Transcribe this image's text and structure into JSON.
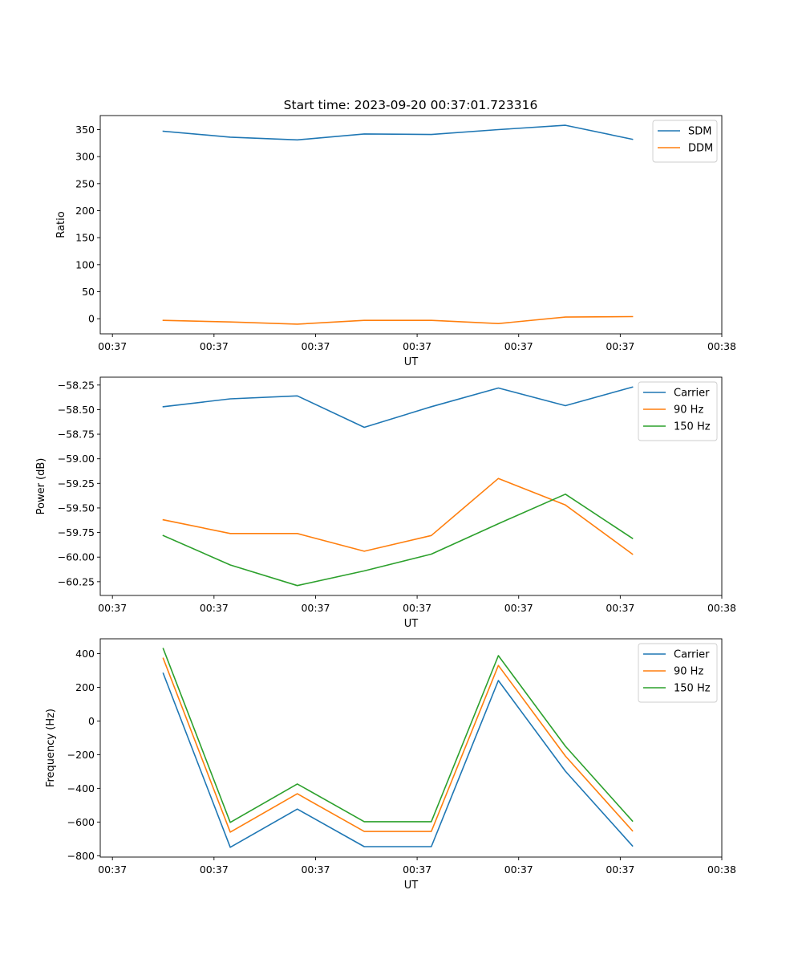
{
  "title": "Start time: 2023-09-20 00:37:01.723316",
  "chart_data": [
    {
      "type": "line",
      "ylabel": "Ratio",
      "xlabel": "UT",
      "x_tick_labels": [
        "00:37",
        "00:37",
        "00:37",
        "00:37",
        "00:37",
        "00:37",
        "00:38"
      ],
      "x_range": [
        -0.12,
        6.0
      ],
      "y_range": [
        -28,
        376
      ],
      "y_ticks": [
        0,
        50,
        100,
        150,
        200,
        250,
        300,
        350
      ],
      "y_tick_labels": [
        "0",
        "50",
        "100",
        "150",
        "200",
        "250",
        "300",
        "350"
      ],
      "legend_position": "top-right",
      "x": [
        0.5,
        1.16,
        1.82,
        2.48,
        3.14,
        3.8,
        4.46,
        5.12
      ],
      "series": [
        {
          "name": "SDM",
          "color": "#1f77b4",
          "values": [
            347,
            336,
            331,
            342,
            341,
            350,
            358,
            332
          ]
        },
        {
          "name": "DDM",
          "color": "#ff7f0e",
          "values": [
            -3,
            -6,
            -10,
            -3,
            -3,
            -9,
            3,
            4
          ]
        }
      ]
    },
    {
      "type": "line",
      "ylabel": "Power (dB)",
      "xlabel": "UT",
      "x_tick_labels": [
        "00:37",
        "00:37",
        "00:37",
        "00:37",
        "00:37",
        "00:37",
        "00:38"
      ],
      "x_range": [
        -0.12,
        6.0
      ],
      "y_range": [
        -60.39,
        -58.17
      ],
      "y_ticks": [
        -60.25,
        -60.0,
        -59.75,
        -59.5,
        -59.25,
        -59.0,
        -58.75,
        -58.5,
        -58.25
      ],
      "y_tick_labels": [
        "−60.25",
        "−60.00",
        "−59.75",
        "−59.50",
        "−59.25",
        "−59.00",
        "−58.75",
        "−58.50",
        "−58.25"
      ],
      "legend_position": "top-right",
      "x": [
        0.5,
        1.16,
        1.82,
        2.48,
        3.14,
        3.8,
        4.46,
        5.12
      ],
      "series": [
        {
          "name": "Carrier",
          "color": "#1f77b4",
          "values": [
            -58.47,
            -58.39,
            -58.36,
            -58.68,
            -58.47,
            -58.28,
            -58.46,
            -58.27
          ]
        },
        {
          "name": "90 Hz",
          "color": "#ff7f0e",
          "values": [
            -59.62,
            -59.76,
            -59.76,
            -59.94,
            -59.78,
            -59.2,
            -59.47,
            -59.97
          ]
        },
        {
          "name": "150 Hz",
          "color": "#2ca02c",
          "values": [
            -59.78,
            -60.08,
            -60.29,
            -60.14,
            -59.97,
            -59.66,
            -59.36,
            -59.81
          ]
        }
      ]
    },
    {
      "type": "line",
      "ylabel": "Frequency (Hz)",
      "xlabel": "UT",
      "x_tick_labels": [
        "00:37",
        "00:37",
        "00:37",
        "00:37",
        "00:37",
        "00:37",
        "00:38"
      ],
      "x_range": [
        -0.12,
        6.0
      ],
      "y_range": [
        -808,
        488
      ],
      "y_ticks": [
        -800,
        -600,
        -400,
        -200,
        0,
        200,
        400
      ],
      "y_tick_labels": [
        "−800",
        "−600",
        "−400",
        "−200",
        "0",
        "200",
        "400"
      ],
      "legend_position": "top-right",
      "x": [
        0.5,
        1.16,
        1.82,
        2.48,
        3.14,
        3.8,
        4.46,
        5.12
      ],
      "series": [
        {
          "name": "Carrier",
          "color": "#1f77b4",
          "values": [
            283,
            -750,
            -523,
            -746,
            -746,
            240,
            -298,
            -742
          ]
        },
        {
          "name": "90 Hz",
          "color": "#ff7f0e",
          "values": [
            372,
            -660,
            -432,
            -656,
            -656,
            330,
            -208,
            -652
          ]
        },
        {
          "name": "150 Hz",
          "color": "#2ca02c",
          "values": [
            430,
            -602,
            -374,
            -598,
            -598,
            388,
            -150,
            -594
          ]
        }
      ]
    }
  ]
}
